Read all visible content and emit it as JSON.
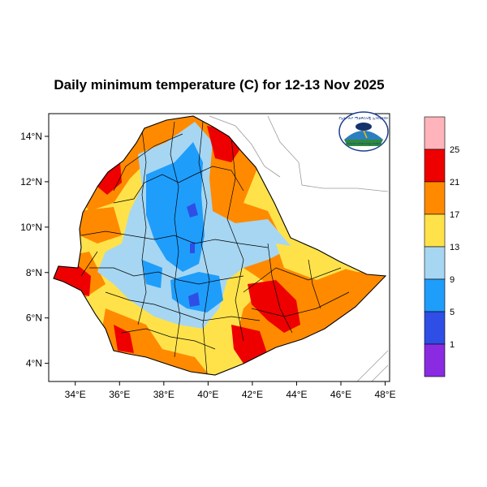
{
  "title": "Daily minimum temperature (C) for 12-13 Nov 2025",
  "map": {
    "x_tick_labels": [
      "34°E",
      "36°E",
      "38°E",
      "40°E",
      "42°E",
      "44°E",
      "46°E",
      "48°E"
    ],
    "y_tick_labels": [
      "14°N",
      "12°N",
      "10°N",
      "8°N",
      "6°N",
      "4°N"
    ],
    "x_ticks": [
      34,
      36,
      38,
      40,
      42,
      44,
      46,
      48
    ],
    "y_ticks": [
      14,
      12,
      10,
      8,
      6,
      4
    ],
    "lon_range": [
      32.8,
      48.2
    ],
    "lat_range": [
      3.2,
      15.0
    ]
  },
  "colorbar": {
    "labels": [
      "25",
      "21",
      "17",
      "13",
      "9",
      "5",
      "1"
    ],
    "colors": [
      "#ffb3ba",
      "#ee0000",
      "#ff8a00",
      "#ffe24a",
      "#a6d6f2",
      "#1f9dfb",
      "#2f4ee6",
      "#8a2be2"
    ]
  },
  "logo": {
    "arc_text": "የኢትዮጵያ ሚቲዎሮሎጂ ኢንስቲትዩት",
    "sub_text": "Ethiopian Meteorology Institute"
  },
  "colors": {
    "frame": "#000000",
    "sea_line": "#9a9a9a"
  }
}
